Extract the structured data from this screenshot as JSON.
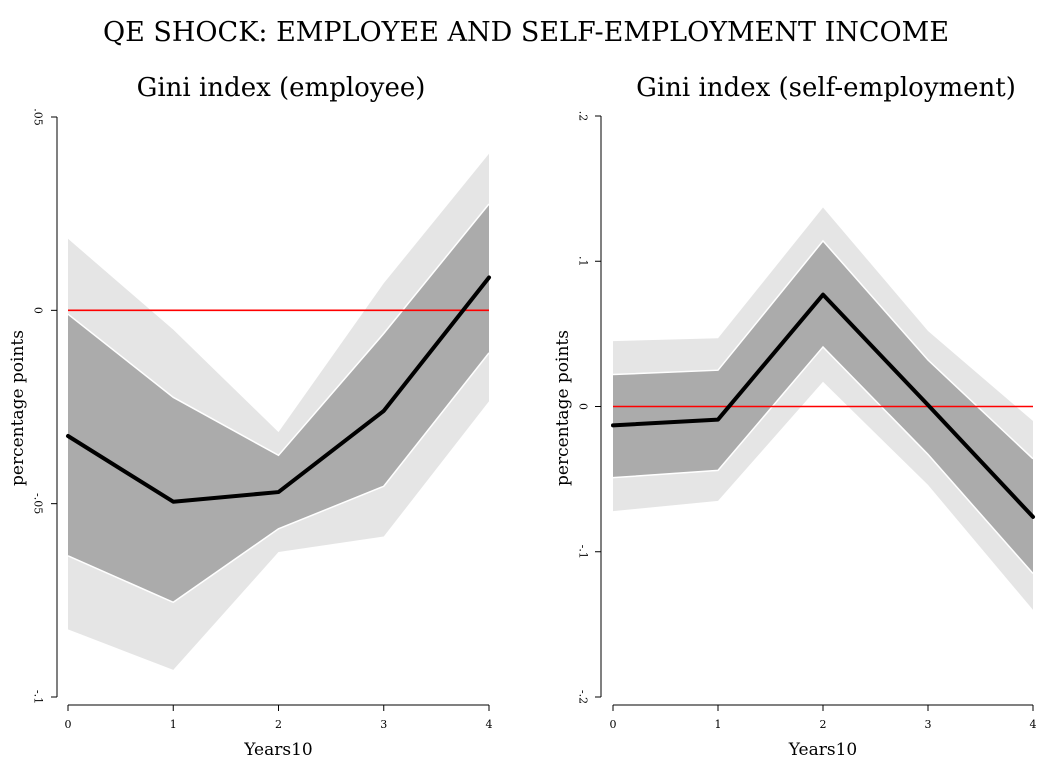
{
  "figure_title": "QE SHOCK: EMPLOYEE AND SELF-EMPLOYMENT INCOME",
  "colors": {
    "outer_band": "#e5e5e5",
    "inner_band": "#ababab",
    "band_edge": "#ffffff",
    "estimate_line": "#000000",
    "zero_line": "#ff0000"
  },
  "chart_data": [
    {
      "type": "area",
      "title": "Gini index (employee)",
      "xlabel": "Years10",
      "ylabel": "percentage points",
      "x": [
        0,
        1,
        2,
        3,
        4
      ],
      "xticks": [
        "0",
        "1",
        "2",
        "3",
        "4"
      ],
      "ylim": [
        -0.1,
        0.05
      ],
      "yticks": [
        -0.1,
        -0.05,
        0,
        0.05
      ],
      "ytick_labels": [
        "-.1",
        "-.05",
        "0",
        ".05"
      ],
      "grid": false,
      "reference_line": 0,
      "series": [
        {
          "role": "outer_upper",
          "values": [
            0.0185,
            -0.005,
            -0.0315,
            0.007,
            0.0405
          ]
        },
        {
          "role": "outer_lower",
          "values": [
            -0.0825,
            -0.093,
            -0.0625,
            -0.0585,
            -0.0235
          ]
        },
        {
          "role": "inner_upper",
          "values": [
            -0.001,
            -0.0225,
            -0.0375,
            -0.006,
            0.0275
          ]
        },
        {
          "role": "inner_lower",
          "values": [
            -0.0635,
            -0.0755,
            -0.0565,
            -0.0455,
            -0.011
          ]
        },
        {
          "role": "estimate",
          "values": [
            -0.0325,
            -0.0495,
            -0.047,
            -0.026,
            0.0085
          ]
        }
      ]
    },
    {
      "type": "area",
      "title": "Gini index (self-employment)",
      "xlabel": "Years10",
      "ylabel": "percentage points",
      "x": [
        0,
        1,
        2,
        3,
        4
      ],
      "xticks": [
        "0",
        "1",
        "2",
        "3",
        "4"
      ],
      "ylim": [
        -0.2,
        0.2
      ],
      "yticks": [
        -0.2,
        -0.1,
        0,
        0.1,
        0.2
      ],
      "ytick_labels": [
        "-.2",
        "-.1",
        "0",
        ".1",
        ".2"
      ],
      "grid": false,
      "reference_line": 0,
      "series": [
        {
          "role": "outer_upper",
          "values": [
            0.045,
            0.047,
            0.137,
            0.052,
            -0.01
          ]
        },
        {
          "role": "outer_lower",
          "values": [
            -0.072,
            -0.065,
            0.017,
            -0.054,
            -0.14
          ]
        },
        {
          "role": "inner_upper",
          "values": [
            0.022,
            0.025,
            0.114,
            0.032,
            -0.036
          ]
        },
        {
          "role": "inner_lower",
          "values": [
            -0.049,
            -0.044,
            0.041,
            -0.033,
            -0.115
          ]
        },
        {
          "role": "estimate",
          "values": [
            -0.013,
            -0.009,
            0.077,
            0.001,
            -0.076
          ]
        }
      ]
    }
  ]
}
